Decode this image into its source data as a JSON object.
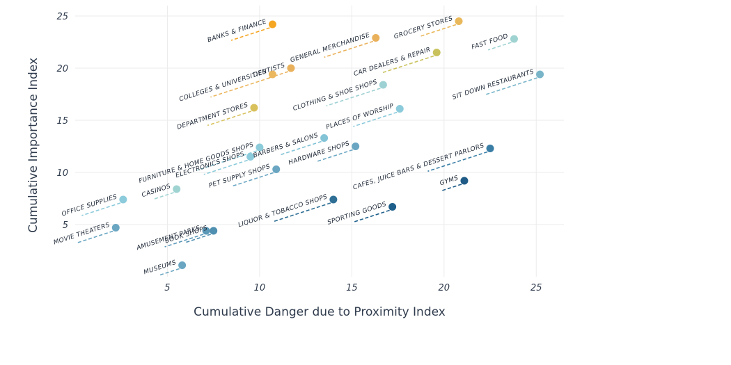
{
  "chart_data": {
    "type": "scatter",
    "title": "",
    "xlabel": "Cumulative Danger due to Proximity Index",
    "ylabel": "Cumulative Importance Index",
    "xlim": [
      0,
      26.5
    ],
    "ylim": [
      0,
      26
    ],
    "xticks": [
      5,
      10,
      15,
      20,
      25
    ],
    "yticks": [
      5,
      10,
      15,
      20,
      25
    ],
    "grid": true,
    "legend": "none",
    "points": [
      {
        "label": "BANKS & FINANCE",
        "x": 10.7,
        "y": 24.2,
        "color": "#f5a623"
      },
      {
        "label": "GENERAL MERCHANDISE",
        "x": 16.3,
        "y": 22.9,
        "color": "#eab15c"
      },
      {
        "label": "GROCERY STORES",
        "x": 20.8,
        "y": 24.5,
        "color": "#e9b85a"
      },
      {
        "label": "FAST FOOD",
        "x": 23.8,
        "y": 22.8,
        "color": "#9fd3d1"
      },
      {
        "label": "DENTISTS",
        "x": 11.7,
        "y": 20.0,
        "color": "#eab15c"
      },
      {
        "label": "COLLEGES & UNIVERSITIES",
        "x": 10.7,
        "y": 19.4,
        "color": "#ebb75f"
      },
      {
        "label": "CAR DEALERS & REPAIR",
        "x": 19.6,
        "y": 21.5,
        "color": "#c9c25c"
      },
      {
        "label": "CLOTHING & SHOE SHOPS",
        "x": 16.7,
        "y": 18.4,
        "color": "#9ed1d3"
      },
      {
        "label": "SIT DOWN RESTAURANTS",
        "x": 25.2,
        "y": 19.4,
        "color": "#79b5c9"
      },
      {
        "label": "DEPARTMENT STORES",
        "x": 9.7,
        "y": 16.2,
        "color": "#d8c15c"
      },
      {
        "label": "PLACES OF WORSHIP",
        "x": 17.6,
        "y": 16.1,
        "color": "#8ccbdb"
      },
      {
        "label": "FURNITURE & HOME GOODS SHOPS",
        "x": 10.0,
        "y": 12.4,
        "color": "#8ccbd9"
      },
      {
        "label": "BARBERS & SALONS",
        "x": 13.5,
        "y": 13.3,
        "color": "#82c3d6"
      },
      {
        "label": "ELECTRONICS SHOPS",
        "x": 9.5,
        "y": 11.5,
        "color": "#8ccbdb"
      },
      {
        "label": "HARDWARE SHOPS",
        "x": 15.2,
        "y": 12.5,
        "color": "#6aa6c2"
      },
      {
        "label": "PET SUPPLY SHOPS",
        "x": 10.9,
        "y": 10.3,
        "color": "#6aa6c2"
      },
      {
        "label": "CAFES, JUICE BARS & DESSERT PARLORS",
        "x": 22.5,
        "y": 12.3,
        "color": "#3a7ea6"
      },
      {
        "label": "CASINOS",
        "x": 5.5,
        "y": 8.4,
        "color": "#9fd3d1"
      },
      {
        "label": "GYMS",
        "x": 21.1,
        "y": 9.2,
        "color": "#1f5b86"
      },
      {
        "label": "OFFICE SUPPLIES",
        "x": 2.6,
        "y": 7.4,
        "color": "#8ccbdb"
      },
      {
        "label": "LIQUOR & TOBACCO SHOPS",
        "x": 14.0,
        "y": 7.4,
        "color": "#2f6f95"
      },
      {
        "label": "SPORTING GOODS",
        "x": 17.2,
        "y": 6.7,
        "color": "#1d5f8a"
      },
      {
        "label": "MOVIE THEATERS",
        "x": 2.2,
        "y": 4.7,
        "color": "#6aa6c2"
      },
      {
        "label": "AMUSEMENT PARKS",
        "x": 7.1,
        "y": 4.4,
        "color": "#5b98b8"
      },
      {
        "label": "BOOK SHOPS",
        "x": 7.5,
        "y": 4.4,
        "color": "#4f8fb0"
      },
      {
        "label": "MUSEUMS",
        "x": 5.8,
        "y": 1.1,
        "color": "#6aa6c2"
      }
    ]
  }
}
